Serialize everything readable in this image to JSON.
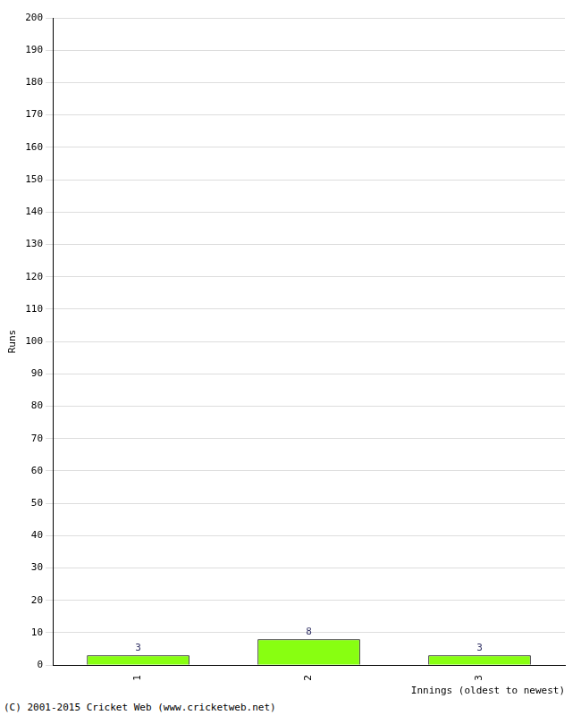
{
  "chart_data": {
    "type": "bar",
    "categories": [
      "1",
      "2",
      "3"
    ],
    "values": [
      3,
      8,
      3
    ],
    "color": "#88ff11",
    "ylim": [
      0,
      200
    ],
    "yticks": [
      0,
      10,
      20,
      30,
      40,
      50,
      60,
      70,
      80,
      90,
      100,
      110,
      120,
      130,
      140,
      150,
      160,
      170,
      180,
      190,
      200
    ],
    "grid": true,
    "data_labels": true,
    "y_label": "Runs",
    "x_label": "Innings (oldest to newest)",
    "annotations": [
      "(C) 2001-2015 Cricket Web (www.cricketweb.net)"
    ]
  }
}
